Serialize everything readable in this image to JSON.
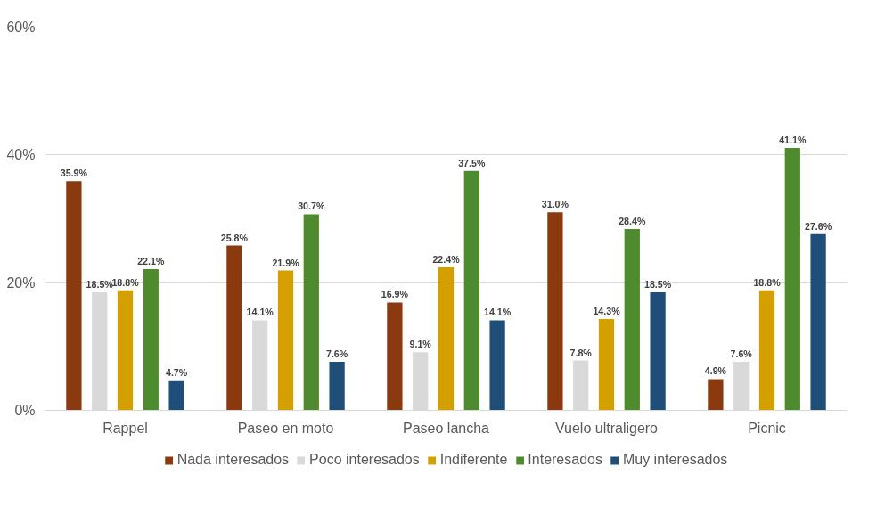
{
  "chart_data": {
    "type": "bar",
    "categories": [
      "Rappel",
      "Paseo en moto",
      "Paseo lancha",
      "Vuelo ultraligero",
      "Picnic"
    ],
    "series": [
      {
        "name": "Nada interesados",
        "color": "#8b3a0f",
        "values": [
          35.9,
          25.8,
          16.9,
          31.0,
          4.9
        ],
        "value_labels": [
          "35.9%",
          "25.8%",
          "16.9%",
          "31.0%",
          "4.9%"
        ]
      },
      {
        "name": "Poco interesados",
        "color": "#d9d9d9",
        "values": [
          18.5,
          14.1,
          9.1,
          7.8,
          7.6
        ],
        "value_labels": [
          "18.5%",
          "14.1%",
          "9.1%",
          "7.8%",
          "7.6%"
        ]
      },
      {
        "name": "Indiferente",
        "color": "#d4a000",
        "values": [
          18.8,
          21.9,
          22.4,
          14.3,
          18.8
        ],
        "value_labels": [
          "18.8%",
          "21.9%",
          "22.4%",
          "14.3%",
          "18.8%"
        ]
      },
      {
        "name": "Interesados",
        "color": "#4e8a2e",
        "values": [
          22.1,
          30.7,
          37.5,
          28.4,
          41.1
        ],
        "value_labels": [
          "22.1%",
          "30.7%",
          "37.5%",
          "28.4%",
          "41.1%"
        ]
      },
      {
        "name": "Muy interesados",
        "color": "#1f4e79",
        "values": [
          4.7,
          7.6,
          14.1,
          18.5,
          27.6
        ],
        "value_labels": [
          "4.7%",
          "7.6%",
          "14.1%",
          "18.5%",
          "27.6%"
        ]
      }
    ],
    "ylim": [
      0,
      60
    ],
    "yticks": [
      {
        "value": 0,
        "label": "0%"
      },
      {
        "value": 20,
        "label": "20%"
      },
      {
        "value": 40,
        "label": "40%"
      },
      {
        "value": 60,
        "label": "60%"
      }
    ],
    "grid": "y",
    "legend": "bottom"
  }
}
